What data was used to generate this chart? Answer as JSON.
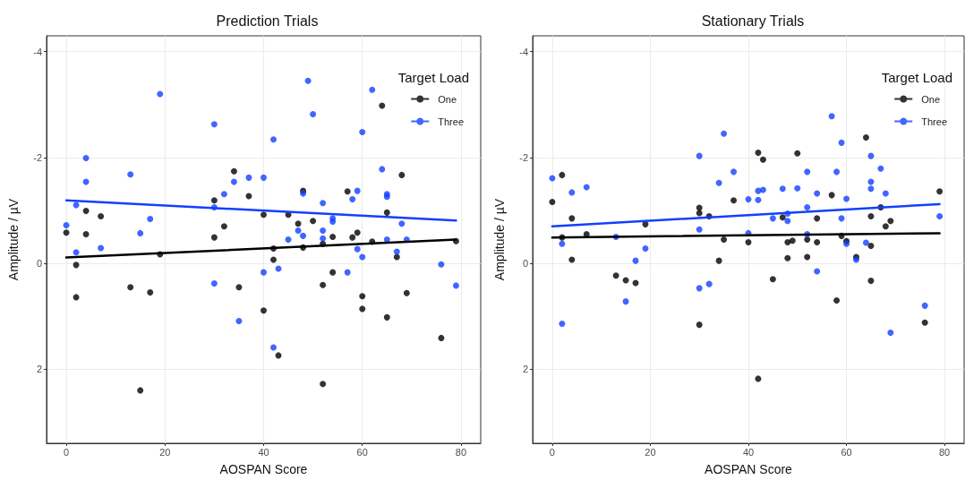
{
  "chart_data": [
    {
      "type": "scatter",
      "title": "Prediction Trials",
      "xlabel": "AOSPAN Score",
      "ylabel": "Amplitude / µV",
      "legend_title": "Target Load",
      "legend": "top right",
      "grid": true,
      "marker": "circle",
      "xlim": [
        -4,
        84
      ],
      "xticks": [
        0,
        20,
        40,
        60,
        80
      ],
      "ylim": [
        3.4,
        -4.3
      ],
      "yticks": [
        -4,
        -2,
        0,
        2
      ],
      "series": [
        {
          "name": "One",
          "color": "#000000",
          "x": [
            0,
            2,
            2,
            4,
            4,
            7,
            13,
            17,
            15,
            19,
            30,
            30,
            32,
            34,
            35,
            37,
            40,
            40,
            42,
            42,
            43,
            45,
            47,
            48,
            48,
            50,
            52,
            52,
            52,
            54,
            54,
            57,
            58,
            59,
            60,
            60,
            62,
            64,
            65,
            65,
            67,
            68,
            69,
            76,
            79
          ],
          "values": [
            -0.58,
            0.03,
            0.64,
            -0.99,
            -0.55,
            -0.89,
            0.45,
            0.55,
            2.4,
            -0.17,
            -1.19,
            -0.49,
            -0.7,
            -1.74,
            0.45,
            -1.27,
            -0.92,
            0.89,
            -0.28,
            -0.07,
            1.74,
            -0.92,
            -0.75,
            -1.37,
            -0.3,
            -0.8,
            -0.37,
            0.41,
            2.28,
            -0.5,
            0.17,
            -1.36,
            -0.49,
            -0.58,
            0.62,
            0.86,
            -0.41,
            -2.98,
            -0.96,
            1.02,
            -0.12,
            -1.67,
            0.56,
            1.41,
            -0.42
          ]
        },
        {
          "name": "Three",
          "color": "#1240ff",
          "x": [
            0,
            2,
            2,
            4,
            4,
            7,
            13,
            15,
            17,
            19,
            30,
            30,
            30,
            32,
            34,
            35,
            37,
            40,
            40,
            42,
            42,
            43,
            45,
            47,
            48,
            48,
            49,
            50,
            52,
            52,
            52,
            54,
            54,
            57,
            58,
            59,
            59,
            60,
            60,
            62,
            64,
            65,
            65,
            65,
            67,
            68,
            69,
            76,
            79
          ],
          "values": [
            -0.72,
            -1.1,
            -0.21,
            -1.99,
            -1.54,
            -0.29,
            -1.68,
            -0.57,
            -0.84,
            -3.2,
            -2.63,
            -1.06,
            0.38,
            -1.31,
            -1.54,
            1.09,
            -1.62,
            -1.62,
            0.17,
            -2.34,
            1.59,
            0.1,
            -0.45,
            -0.62,
            -1.32,
            -0.52,
            -3.45,
            -2.82,
            -1.14,
            -0.62,
            -0.47,
            -0.85,
            -0.79,
            0.17,
            -1.21,
            -1.37,
            -0.27,
            -2.48,
            -0.12,
            -3.28,
            -1.78,
            -1.31,
            -1.26,
            -0.45,
            -0.22,
            -0.75,
            -0.45,
            0.02,
            0.42
          ]
        },
        {
          "type": "line",
          "color": "#000000",
          "marker": "none",
          "x": [
            0,
            79
          ],
          "values": [
            -0.11,
            -0.45
          ]
        },
        {
          "type": "line",
          "color": "#1240ff",
          "marker": "none",
          "x": [
            0,
            79
          ],
          "values": [
            -1.19,
            -0.81
          ]
        }
      ]
    },
    {
      "type": "scatter",
      "title": "Stationary Trials",
      "xlabel": "AOSPAN Score",
      "ylabel": "Amplitude / µV",
      "legend_title": "Target Load",
      "legend": "top right",
      "grid": true,
      "marker": "circle",
      "xlim": [
        -4,
        84
      ],
      "xticks": [
        0,
        20,
        40,
        60,
        80
      ],
      "ylim": [
        3.4,
        -4.3
      ],
      "yticks": [
        -4,
        -2,
        0,
        2
      ],
      "series": [
        {
          "name": "One",
          "color": "#000000",
          "x": [
            0,
            2,
            2,
            4,
            4,
            7,
            13,
            15,
            17,
            19,
            30,
            30,
            30,
            32,
            34,
            35,
            37,
            40,
            42,
            42,
            43,
            45,
            47,
            48,
            48,
            49,
            50,
            52,
            52,
            54,
            54,
            57,
            58,
            59,
            60,
            62,
            64,
            65,
            65,
            65,
            67,
            68,
            69,
            76,
            79
          ],
          "values": [
            -1.16,
            -1.67,
            -0.49,
            -0.85,
            -0.07,
            -0.55,
            0.23,
            0.32,
            0.37,
            -0.74,
            -1.05,
            -0.95,
            1.16,
            -0.89,
            -0.05,
            -0.45,
            -1.19,
            -0.4,
            -2.09,
            2.18,
            -1.96,
            0.3,
            -0.87,
            -0.4,
            -0.1,
            -0.43,
            -2.08,
            -0.45,
            -0.12,
            -0.85,
            -0.4,
            -1.29,
            0.7,
            -0.52,
            -0.42,
            -0.12,
            -2.38,
            -0.89,
            -0.33,
            0.33,
            -1.06,
            -0.7,
            -0.8,
            1.12,
            -1.36
          ]
        },
        {
          "name": "Three",
          "color": "#1240ff",
          "x": [
            0,
            2,
            2,
            4,
            7,
            13,
            15,
            17,
            19,
            30,
            30,
            30,
            32,
            34,
            35,
            37,
            40,
            40,
            42,
            42,
            43,
            45,
            47,
            48,
            48,
            50,
            52,
            52,
            52,
            54,
            54,
            57,
            58,
            59,
            59,
            60,
            60,
            62,
            64,
            65,
            65,
            65,
            67,
            68,
            69,
            76,
            79
          ],
          "values": [
            -1.61,
            -0.37,
            1.14,
            -1.34,
            -1.44,
            -0.5,
            0.72,
            -0.05,
            -0.28,
            -2.03,
            -0.64,
            0.47,
            0.39,
            -1.52,
            -2.45,
            -1.73,
            -1.21,
            -0.57,
            -1.37,
            -1.2,
            -1.39,
            -0.85,
            -1.41,
            -0.94,
            -0.8,
            -1.42,
            -1.73,
            -1.06,
            -0.55,
            -1.32,
            0.15,
            -2.78,
            -1.73,
            -2.28,
            -0.85,
            -1.22,
            -0.37,
            -0.07,
            -0.39,
            -2.03,
            -1.54,
            -1.41,
            -1.79,
            -1.32,
            1.31,
            0.8,
            -0.89
          ]
        },
        {
          "type": "line",
          "color": "#000000",
          "marker": "none",
          "x": [
            0,
            79
          ],
          "values": [
            -0.49,
            -0.57
          ]
        },
        {
          "type": "line",
          "color": "#1240ff",
          "marker": "none",
          "x": [
            0,
            79
          ],
          "values": [
            -0.7,
            -1.12
          ]
        }
      ]
    }
  ]
}
